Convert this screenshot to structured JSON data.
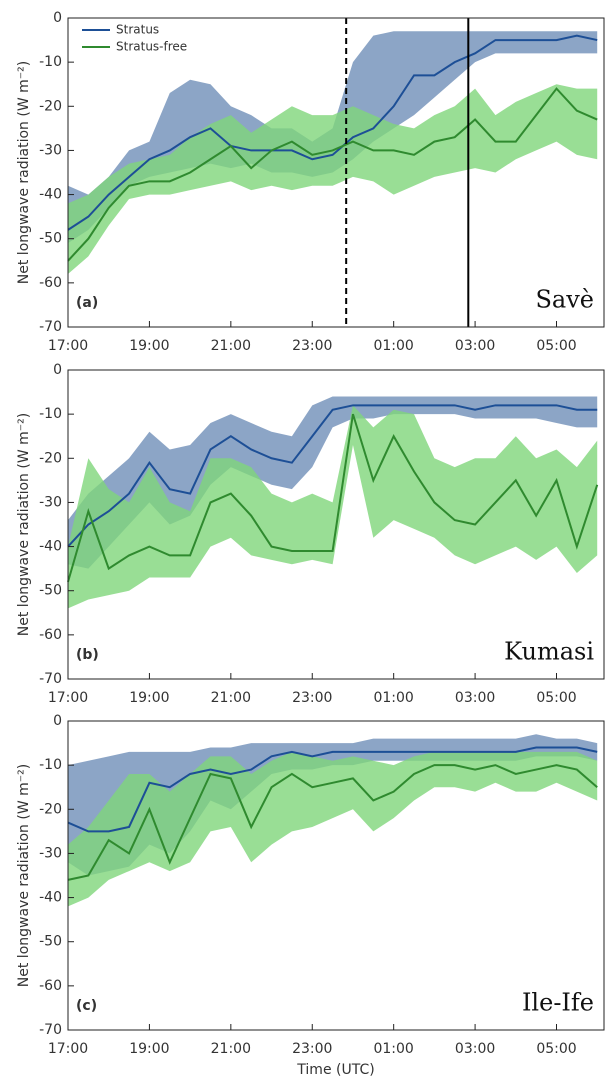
{
  "chart_data": [
    {
      "type": "line",
      "ylabel": "Net longwave radiation (W m⁻²)",
      "panel_label": "(a)",
      "station": "Savè",
      "x": [
        "17:00",
        "17:30",
        "18:00",
        "18:30",
        "19:00",
        "19:30",
        "20:00",
        "20:30",
        "21:00",
        "21:30",
        "22:00",
        "22:30",
        "23:00",
        "23:30",
        "00:00",
        "00:30",
        "01:00",
        "01:30",
        "02:00",
        "02:30",
        "03:00",
        "03:30",
        "04:00",
        "04:30",
        "05:00",
        "05:30",
        "06:00"
      ],
      "xlim": [
        "17:00",
        "06:10"
      ],
      "xticks": [
        "17:00",
        "19:00",
        "21:00",
        "23:00",
        "01:00",
        "03:00",
        "05:00"
      ],
      "ylim": [
        -70,
        0
      ],
      "yticks": [
        0,
        -10,
        -20,
        -30,
        -40,
        -50,
        -60,
        -70
      ],
      "legend": "upper left",
      "vlines": [
        {
          "x": "23:50",
          "dashed": true
        },
        {
          "x": "02:50",
          "dashed": false
        }
      ],
      "series": [
        {
          "name": "Stratus",
          "color": "#1d4f96",
          "band_color": "#6f8fb8",
          "values": [
            -48,
            -45,
            -40,
            -36,
            -32,
            -30,
            -27,
            -25,
            -29,
            -30,
            -30,
            -30,
            -32,
            -31,
            -27,
            -25,
            -20,
            -13,
            -13,
            -10,
            -8,
            -5,
            -5,
            -5,
            -5,
            -4,
            -5
          ],
          "lower": [
            -51,
            -48,
            -43,
            -38,
            -36,
            -35,
            -34,
            -33,
            -34,
            -33,
            -35,
            -35,
            -36,
            -35,
            -32,
            -28,
            -25,
            -22,
            -18,
            -14,
            -10,
            -8,
            -8,
            -8,
            -8,
            -8,
            -8
          ],
          "upper": [
            -38,
            -40,
            -36,
            -30,
            -28,
            -17,
            -14,
            -15,
            -20,
            -22,
            -25,
            -25,
            -28,
            -25,
            -10,
            -4,
            -3,
            -3,
            -3,
            -3,
            -3,
            -3,
            -3,
            -3,
            -3,
            -3,
            -3
          ]
        },
        {
          "name": "Stratus-free",
          "color": "#2f8a2f",
          "band_color": "#7fd67a",
          "values": [
            -55,
            -50,
            -43,
            -38,
            -37,
            -37,
            -35,
            -32,
            -29,
            -34,
            -30,
            -28,
            -31,
            -30,
            -28,
            -30,
            -30,
            -31,
            -28,
            -27,
            -23,
            -28,
            -28,
            -22,
            -16,
            -21,
            -23
          ],
          "lower": [
            -58,
            -54,
            -47,
            -41,
            -40,
            -40,
            -39,
            -38,
            -37,
            -39,
            -38,
            -39,
            -38,
            -38,
            -36,
            -37,
            -40,
            -38,
            -36,
            -35,
            -34,
            -35,
            -32,
            -30,
            -28,
            -31,
            -32
          ],
          "upper": [
            -42,
            -40,
            -36,
            -33,
            -32,
            -31,
            -27,
            -24,
            -22,
            -26,
            -23,
            -20,
            -22,
            -22,
            -20,
            -22,
            -24,
            -25,
            -22,
            -20,
            -16,
            -22,
            -19,
            -17,
            -15,
            -16,
            -16
          ]
        }
      ]
    },
    {
      "type": "line",
      "ylabel": "Net longwave radiation (W m⁻²)",
      "panel_label": "(b)",
      "station": "Kumasi",
      "x": [
        "17:00",
        "17:30",
        "18:00",
        "18:30",
        "19:00",
        "19:30",
        "20:00",
        "20:30",
        "21:00",
        "21:30",
        "22:00",
        "22:30",
        "23:00",
        "23:30",
        "00:00",
        "00:30",
        "01:00",
        "01:30",
        "02:00",
        "02:30",
        "03:00",
        "03:30",
        "04:00",
        "04:30",
        "05:00",
        "05:30",
        "06:00"
      ],
      "xlim": [
        "17:00",
        "06:10"
      ],
      "xticks": [
        "17:00",
        "19:00",
        "21:00",
        "23:00",
        "01:00",
        "03:00",
        "05:00"
      ],
      "ylim": [
        -70,
        0
      ],
      "yticks": [
        0,
        -10,
        -20,
        -30,
        -40,
        -50,
        -60,
        -70
      ],
      "series": [
        {
          "color": "#1d4f96",
          "band_color": "#6f8fb8",
          "values": [
            -40,
            -35,
            -32,
            -28,
            -21,
            -27,
            -28,
            -18,
            -15,
            -18,
            -20,
            -21,
            -15,
            -9,
            -8,
            -8,
            -8,
            -8,
            -8,
            -8,
            -9,
            -8,
            -8,
            -8,
            -8,
            -9,
            -9
          ],
          "lower": [
            -44,
            -45,
            -40,
            -35,
            -30,
            -35,
            -33,
            -26,
            -22,
            -24,
            -26,
            -27,
            -22,
            -13,
            -11,
            -11,
            -10,
            -10,
            -10,
            -10,
            -11,
            -11,
            -11,
            -11,
            -12,
            -13,
            -13
          ],
          "upper": [
            -34,
            -28,
            -24,
            -20,
            -14,
            -18,
            -17,
            -12,
            -10,
            -12,
            -14,
            -15,
            -8,
            -6,
            -6,
            -6,
            -6,
            -6,
            -6,
            -6,
            -6,
            -6,
            -6,
            -6,
            -6,
            -6,
            -6
          ]
        },
        {
          "color": "#2f8a2f",
          "band_color": "#7fd67a",
          "values": [
            -48,
            -32,
            -45,
            -42,
            -40,
            -42,
            -42,
            -30,
            -28,
            -33,
            -40,
            -41,
            -41,
            -41,
            -10,
            -25,
            -15,
            -23,
            -30,
            -34,
            -35,
            -30,
            -25,
            -33,
            -25,
            -40,
            -26
          ],
          "lower": [
            -54,
            -52,
            -51,
            -50,
            -47,
            -47,
            -47,
            -40,
            -38,
            -42,
            -43,
            -44,
            -43,
            -44,
            -17,
            -38,
            -34,
            -36,
            -38,
            -42,
            -44,
            -42,
            -40,
            -43,
            -40,
            -46,
            -42
          ],
          "upper": [
            -40,
            -20,
            -27,
            -30,
            -22,
            -30,
            -32,
            -20,
            -20,
            -22,
            -28,
            -30,
            -28,
            -30,
            -8,
            -13,
            -9,
            -10,
            -20,
            -22,
            -20,
            -20,
            -15,
            -20,
            -18,
            -22,
            -16
          ]
        }
      ]
    },
    {
      "type": "line",
      "ylabel": "Net longwave radiation (W m⁻²)",
      "panel_label": "(c)",
      "station": "Ile-Ife",
      "xlabel": "Time (UTC)",
      "x": [
        "17:00",
        "17:30",
        "18:00",
        "18:30",
        "19:00",
        "19:30",
        "20:00",
        "20:30",
        "21:00",
        "21:30",
        "22:00",
        "22:30",
        "23:00",
        "23:30",
        "00:00",
        "00:30",
        "01:00",
        "01:30",
        "02:00",
        "02:30",
        "03:00",
        "03:30",
        "04:00",
        "04:30",
        "05:00",
        "05:30",
        "06:00"
      ],
      "xlim": [
        "17:00",
        "06:10"
      ],
      "xticks": [
        "17:00",
        "19:00",
        "21:00",
        "23:00",
        "01:00",
        "03:00",
        "05:00"
      ],
      "ylim": [
        -70,
        0
      ],
      "yticks": [
        0,
        -10,
        -20,
        -30,
        -40,
        -50,
        -60,
        -70
      ],
      "series": [
        {
          "color": "#1d4f96",
          "band_color": "#6f8fb8",
          "values": [
            -23,
            -25,
            -25,
            -24,
            -14,
            -15,
            -12,
            -11,
            -12,
            -11,
            -8,
            -7,
            -8,
            -7,
            -7,
            -7,
            -7,
            -7,
            -7,
            -7,
            -7,
            -7,
            -7,
            -6,
            -6,
            -6,
            -7
          ],
          "lower": [
            -32,
            -35,
            -34,
            -33,
            -28,
            -30,
            -25,
            -18,
            -20,
            -16,
            -12,
            -11,
            -11,
            -10,
            -10,
            -9,
            -9,
            -9,
            -9,
            -9,
            -9,
            -9,
            -9,
            -8,
            -8,
            -8,
            -9
          ],
          "upper": [
            -10,
            -9,
            -8,
            -7,
            -7,
            -7,
            -7,
            -6,
            -6,
            -5,
            -5,
            -5,
            -5,
            -5,
            -5,
            -4,
            -4,
            -4,
            -4,
            -4,
            -4,
            -4,
            -4,
            -3,
            -4,
            -4,
            -5
          ]
        },
        {
          "color": "#2f8a2f",
          "band_color": "#7fd67a",
          "values": [
            -36,
            -35,
            -27,
            -30,
            -20,
            -32,
            -22,
            -12,
            -13,
            -24,
            -15,
            -12,
            -15,
            -14,
            -13,
            -18,
            -16,
            -12,
            -10,
            -10,
            -11,
            -10,
            -12,
            -11,
            -10,
            -11,
            -15
          ],
          "lower": [
            -42,
            -40,
            -36,
            -34,
            -32,
            -34,
            -32,
            -25,
            -24,
            -32,
            -28,
            -25,
            -24,
            -22,
            -20,
            -25,
            -22,
            -18,
            -15,
            -15,
            -16,
            -14,
            -16,
            -16,
            -14,
            -16,
            -18
          ],
          "upper": [
            -28,
            -24,
            -18,
            -12,
            -12,
            -16,
            -12,
            -8,
            -8,
            -12,
            -9,
            -7,
            -8,
            -9,
            -8,
            -9,
            -10,
            -8,
            -7,
            -7,
            -7,
            -7,
            -7,
            -7,
            -7,
            -7,
            -9
          ]
        }
      ]
    }
  ]
}
